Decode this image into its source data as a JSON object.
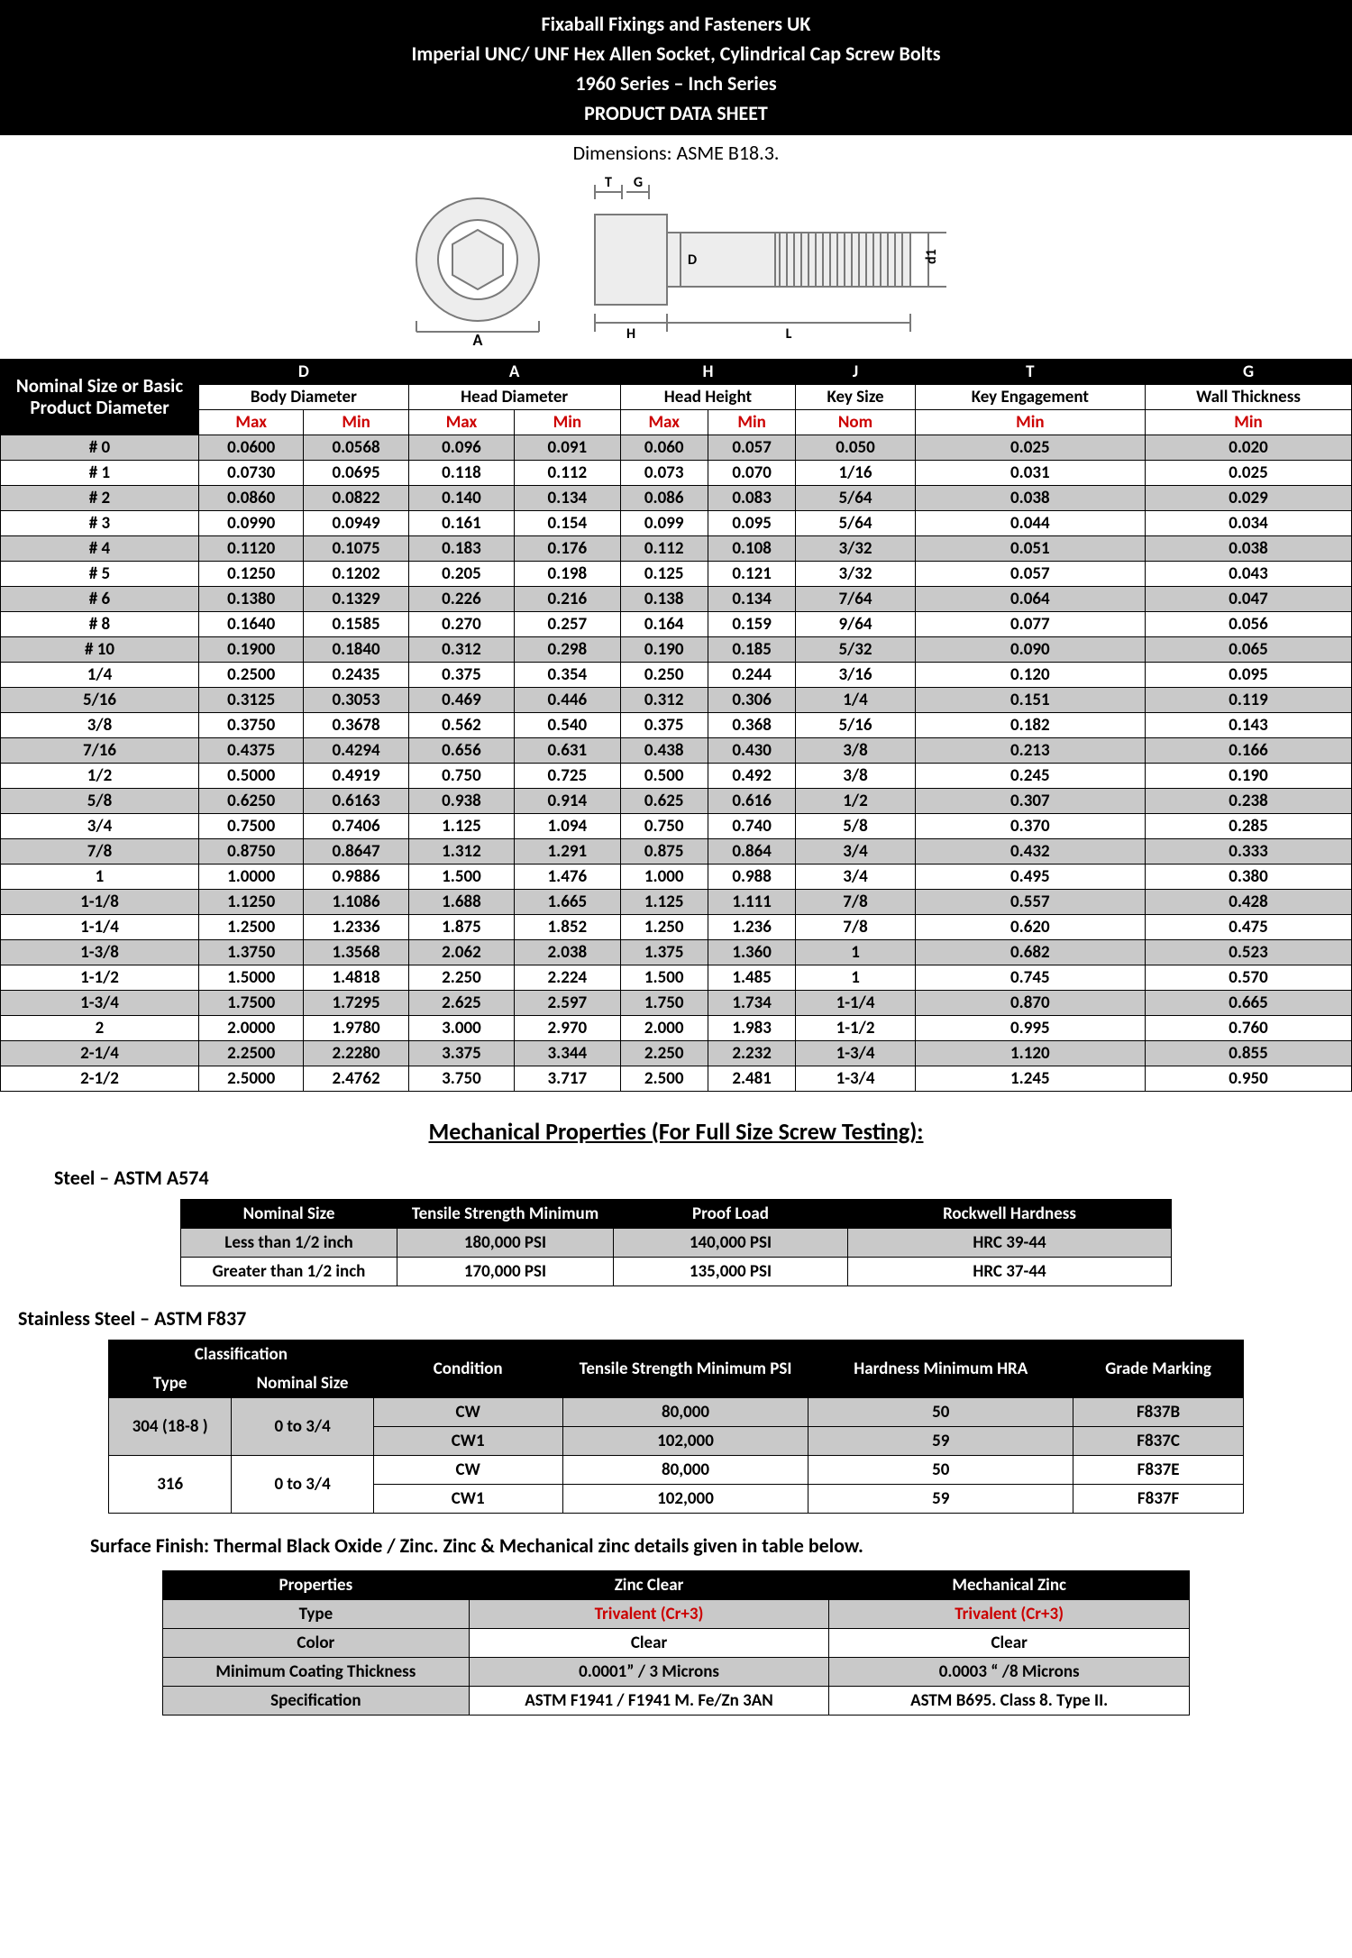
{
  "header": {
    "l1": "Fixaball Fixings and Fasteners UK",
    "l2": "Imperial UNC/ UNF Hex Allen Socket, Cylindrical Cap Screw Bolts",
    "l3": "1960 Series – Inch Series",
    "l4": "PRODUCT DATA SHEET"
  },
  "subtitle": "Dimensions: ASME B18.3.",
  "diagram": {
    "labels": {
      "A": "A",
      "D": "D",
      "T": "T",
      "G": "G",
      "H": "H",
      "L": "L",
      "d1": "d1"
    },
    "stroke": "#7a7a7a",
    "fill": "#ededed"
  },
  "dims": {
    "leftHeader": "Nominal Size or Basic Product Diameter",
    "groups": [
      {
        "code": "D",
        "label": "Body Diameter",
        "cols": [
          "Max",
          "Min"
        ]
      },
      {
        "code": "A",
        "label": "Head Diameter",
        "cols": [
          "Max",
          "Min"
        ]
      },
      {
        "code": "H",
        "label": "Head Height",
        "cols": [
          "Max",
          "Min"
        ]
      },
      {
        "code": "J",
        "label": "Key Size",
        "cols": [
          "Nom"
        ]
      },
      {
        "code": "T",
        "label": "Key Engagement",
        "cols": [
          "Min"
        ]
      },
      {
        "code": "G",
        "label": "Wall Thickness",
        "cols": [
          "Min"
        ]
      }
    ],
    "rows": [
      {
        "s": "# 0",
        "d": [
          "0.0600",
          "0.0568"
        ],
        "a": [
          "0.096",
          "0.091"
        ],
        "h": [
          "0.060",
          "0.057"
        ],
        "j": "0.050",
        "t": "0.025",
        "g": "0.020",
        "shade": true
      },
      {
        "s": "# 1",
        "d": [
          "0.0730",
          "0.0695"
        ],
        "a": [
          "0.118",
          "0.112"
        ],
        "h": [
          "0.073",
          "0.070"
        ],
        "j": "1/16",
        "t": "0.031",
        "g": "0.025",
        "shade": false
      },
      {
        "s": "# 2",
        "d": [
          "0.0860",
          "0.0822"
        ],
        "a": [
          "0.140",
          "0.134"
        ],
        "h": [
          "0.086",
          "0.083"
        ],
        "j": "5/64",
        "t": "0.038",
        "g": "0.029",
        "shade": true
      },
      {
        "s": "# 3",
        "d": [
          "0.0990",
          "0.0949"
        ],
        "a": [
          "0.161",
          "0.154"
        ],
        "h": [
          "0.099",
          "0.095"
        ],
        "j": "5/64",
        "t": "0.044",
        "g": "0.034",
        "shade": false
      },
      {
        "s": "# 4",
        "d": [
          "0.1120",
          "0.1075"
        ],
        "a": [
          "0.183",
          "0.176"
        ],
        "h": [
          "0.112",
          "0.108"
        ],
        "j": "3/32",
        "t": "0.051",
        "g": "0.038",
        "shade": true
      },
      {
        "s": "# 5",
        "d": [
          "0.1250",
          "0.1202"
        ],
        "a": [
          "0.205",
          "0.198"
        ],
        "h": [
          "0.125",
          "0.121"
        ],
        "j": "3/32",
        "t": "0.057",
        "g": "0.043",
        "shade": false
      },
      {
        "s": "# 6",
        "d": [
          "0.1380",
          "0.1329"
        ],
        "a": [
          "0.226",
          "0.216"
        ],
        "h": [
          "0.138",
          "0.134"
        ],
        "j": "7/64",
        "t": "0.064",
        "g": "0.047",
        "shade": true
      },
      {
        "s": "# 8",
        "d": [
          "0.1640",
          "0.1585"
        ],
        "a": [
          "0.270",
          "0.257"
        ],
        "h": [
          "0.164",
          "0.159"
        ],
        "j": "9/64",
        "t": "0.077",
        "g": "0.056",
        "shade": false
      },
      {
        "s": "# 10",
        "d": [
          "0.1900",
          "0.1840"
        ],
        "a": [
          "0.312",
          "0.298"
        ],
        "h": [
          "0.190",
          "0.185"
        ],
        "j": "5/32",
        "t": "0.090",
        "g": "0.065",
        "shade": true
      },
      {
        "s": "1/4",
        "d": [
          "0.2500",
          "0.2435"
        ],
        "a": [
          "0.375",
          "0.354"
        ],
        "h": [
          "0.250",
          "0.244"
        ],
        "j": "3/16",
        "t": "0.120",
        "g": "0.095",
        "shade": false
      },
      {
        "s": "5/16",
        "d": [
          "0.3125",
          "0.3053"
        ],
        "a": [
          "0.469",
          "0.446"
        ],
        "h": [
          "0.312",
          "0.306"
        ],
        "j": "1/4",
        "t": "0.151",
        "g": "0.119",
        "shade": true
      },
      {
        "s": "3/8",
        "d": [
          "0.3750",
          "0.3678"
        ],
        "a": [
          "0.562",
          "0.540"
        ],
        "h": [
          "0.375",
          "0.368"
        ],
        "j": "5/16",
        "t": "0.182",
        "g": "0.143",
        "shade": false
      },
      {
        "s": "7/16",
        "d": [
          "0.4375",
          "0.4294"
        ],
        "a": [
          "0.656",
          "0.631"
        ],
        "h": [
          "0.438",
          "0.430"
        ],
        "j": "3/8",
        "t": "0.213",
        "g": "0.166",
        "shade": true
      },
      {
        "s": "1/2",
        "d": [
          "0.5000",
          "0.4919"
        ],
        "a": [
          "0.750",
          "0.725"
        ],
        "h": [
          "0.500",
          "0.492"
        ],
        "j": "3/8",
        "t": "0.245",
        "g": "0.190",
        "shade": false
      },
      {
        "s": "5/8",
        "d": [
          "0.6250",
          "0.6163"
        ],
        "a": [
          "0.938",
          "0.914"
        ],
        "h": [
          "0.625",
          "0.616"
        ],
        "j": "1/2",
        "t": "0.307",
        "g": "0.238",
        "shade": true
      },
      {
        "s": "3/4",
        "d": [
          "0.7500",
          "0.7406"
        ],
        "a": [
          "1.125",
          "1.094"
        ],
        "h": [
          "0.750",
          "0.740"
        ],
        "j": "5/8",
        "t": "0.370",
        "g": "0.285",
        "shade": false
      },
      {
        "s": "7/8",
        "d": [
          "0.8750",
          "0.8647"
        ],
        "a": [
          "1.312",
          "1.291"
        ],
        "h": [
          "0.875",
          "0.864"
        ],
        "j": "3/4",
        "t": "0.432",
        "g": "0.333",
        "shade": true
      },
      {
        "s": "1",
        "d": [
          "1.0000",
          "0.9886"
        ],
        "a": [
          "1.500",
          "1.476"
        ],
        "h": [
          "1.000",
          "0.988"
        ],
        "j": "3/4",
        "t": "0.495",
        "g": "0.380",
        "shade": false
      },
      {
        "s": "1-1/8",
        "d": [
          "1.1250",
          "1.1086"
        ],
        "a": [
          "1.688",
          "1.665"
        ],
        "h": [
          "1.125",
          "1.111"
        ],
        "j": "7/8",
        "t": "0.557",
        "g": "0.428",
        "shade": true
      },
      {
        "s": "1-1/4",
        "d": [
          "1.2500",
          "1.2336"
        ],
        "a": [
          "1.875",
          "1.852"
        ],
        "h": [
          "1.250",
          "1.236"
        ],
        "j": "7/8",
        "t": "0.620",
        "g": "0.475",
        "shade": false
      },
      {
        "s": "1-3/8",
        "d": [
          "1.3750",
          "1.3568"
        ],
        "a": [
          "2.062",
          "2.038"
        ],
        "h": [
          "1.375",
          "1.360"
        ],
        "j": "1",
        "t": "0.682",
        "g": "0.523",
        "shade": true
      },
      {
        "s": "1-1/2",
        "d": [
          "1.5000",
          "1.4818"
        ],
        "a": [
          "2.250",
          "2.224"
        ],
        "h": [
          "1.500",
          "1.485"
        ],
        "j": "1",
        "t": "0.745",
        "g": "0.570",
        "shade": false
      },
      {
        "s": "1-3/4",
        "d": [
          "1.7500",
          "1.7295"
        ],
        "a": [
          "2.625",
          "2.597"
        ],
        "h": [
          "1.750",
          "1.734"
        ],
        "j": "1-1/4",
        "t": "0.870",
        "g": "0.665",
        "shade": true
      },
      {
        "s": "2",
        "d": [
          "2.0000",
          "1.9780"
        ],
        "a": [
          "3.000",
          "2.970"
        ],
        "h": [
          "2.000",
          "1.983"
        ],
        "j": "1-1/2",
        "t": "0.995",
        "g": "0.760",
        "shade": false
      },
      {
        "s": "2-1/4",
        "d": [
          "2.2500",
          "2.2280"
        ],
        "a": [
          "3.375",
          "3.344"
        ],
        "h": [
          "2.250",
          "2.232"
        ],
        "j": "1-3/4",
        "t": "1.120",
        "g": "0.855",
        "shade": true
      },
      {
        "s": "2-1/2",
        "d": [
          "2.5000",
          "2.4762"
        ],
        "a": [
          "3.750",
          "3.717"
        ],
        "h": [
          "2.500",
          "2.481"
        ],
        "j": "1-3/4",
        "t": "1.245",
        "g": "0.950",
        "shade": false
      }
    ]
  },
  "mechTitle": "Mechanical Properties (For Full Size Screw Testing):",
  "steel": {
    "label": "Steel – ASTM A574",
    "cols": [
      "Nominal Size",
      "Tensile Strength Minimum",
      "Proof Load",
      "Rockwell Hardness"
    ],
    "rows": [
      {
        "c": [
          "Less than 1/2 inch",
          "180,000 PSI",
          "140,000 PSI",
          "HRC 39-44"
        ],
        "shade": true
      },
      {
        "c": [
          "Greater than 1/2 inch",
          "170,000 PSI",
          "135,000 PSI",
          "HRC 37-44"
        ],
        "shade": false
      }
    ]
  },
  "stainless": {
    "label": "Stainless Steel – ASTM F837",
    "head": {
      "class": "Classification",
      "type": "Type",
      "nom": "Nominal Size",
      "cond": "Condition",
      "tens": "Tensile Strength Minimum PSI",
      "hard": "Hardness Minimum HRA",
      "grade": "Grade Marking"
    },
    "rows": [
      {
        "type": "304 (18-8 )",
        "nom": "0  to  3/4",
        "cond": "CW",
        "tens": "80,000",
        "hard": "50",
        "grade": "F837B",
        "shade": true
      },
      {
        "cond": "CW1",
        "tens": "102,000",
        "hard": "59",
        "grade": "F837C",
        "shade": true,
        "span": false
      },
      {
        "type": "316",
        "nom": "0 to 3/4",
        "cond": "CW",
        "tens": "80,000",
        "hard": "50",
        "grade": "F837E",
        "shade": false
      },
      {
        "cond": "CW1",
        "tens": "102,000",
        "hard": "59",
        "grade": "F837F",
        "shade": false,
        "span": false
      }
    ]
  },
  "surfaceNote": "Surface Finish: Thermal Black Oxide / Zinc. Zinc & Mechanical zinc details given in table below.",
  "zinc": {
    "cols": [
      "Properties",
      "Zinc  Clear",
      "Mechanical Zinc"
    ],
    "rows": [
      {
        "p": "Type",
        "a": "Trivalent (Cr+3)",
        "b": "Trivalent (Cr+3)",
        "red": true,
        "shade": true
      },
      {
        "p": "Color",
        "a": "Clear",
        "b": "Clear",
        "shade": false
      },
      {
        "p": "Minimum Coating Thickness",
        "a": "0.0001” / 3 Microns",
        "b": "0.0003 “ /8 Microns",
        "shade": true
      },
      {
        "p": "Specification",
        "a": "ASTM F1941 / F1941 M. Fe/Zn 3AN",
        "b": "ASTM B695. Class 8. Type II.",
        "shade": false
      }
    ]
  }
}
